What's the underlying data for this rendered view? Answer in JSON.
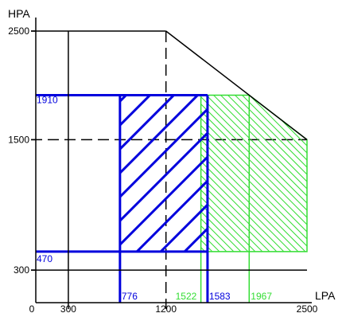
{
  "chart_data": {
    "type": "area",
    "title": "",
    "xlabel": "LPA",
    "ylabel": "HPA",
    "xlim": [
      0,
      2500
    ],
    "ylim": [
      0,
      2500
    ],
    "x_ticks": [
      {
        "value": 0,
        "label": "0"
      },
      {
        "value": 300,
        "label": "300"
      },
      {
        "value": 1200,
        "label": "1200"
      },
      {
        "value": 2500,
        "label": "2500"
      }
    ],
    "y_ticks": [
      {
        "value": 300,
        "label": "300"
      },
      {
        "value": 1500,
        "label": "1500"
      },
      {
        "value": 2500,
        "label": "2500"
      }
    ],
    "envelope": {
      "points": [
        [
          300,
          300
        ],
        [
          300,
          2500
        ],
        [
          1200,
          2500
        ],
        [
          2500,
          1500
        ],
        [
          2500,
          300
        ]
      ],
      "color": "#000000"
    },
    "reference_lines": {
      "x": [
        1200
      ],
      "y": [
        1500
      ]
    },
    "regions": [
      {
        "x_range": [
          776,
          1583
        ],
        "y_range": [
          470,
          1910
        ],
        "color": "#0000dd",
        "hatch": "wide-diagonal",
        "x_labels": [
          "776",
          "1583"
        ],
        "y_labels": [
          "470",
          "1910"
        ]
      },
      {
        "x_range": [
          1522,
          2500
        ],
        "y_range": [
          470,
          1910
        ],
        "x_corner": 1967,
        "color": "#33dd33",
        "hatch": "fine-diagonal",
        "x_labels": [
          "1522",
          "1967"
        ]
      }
    ]
  }
}
